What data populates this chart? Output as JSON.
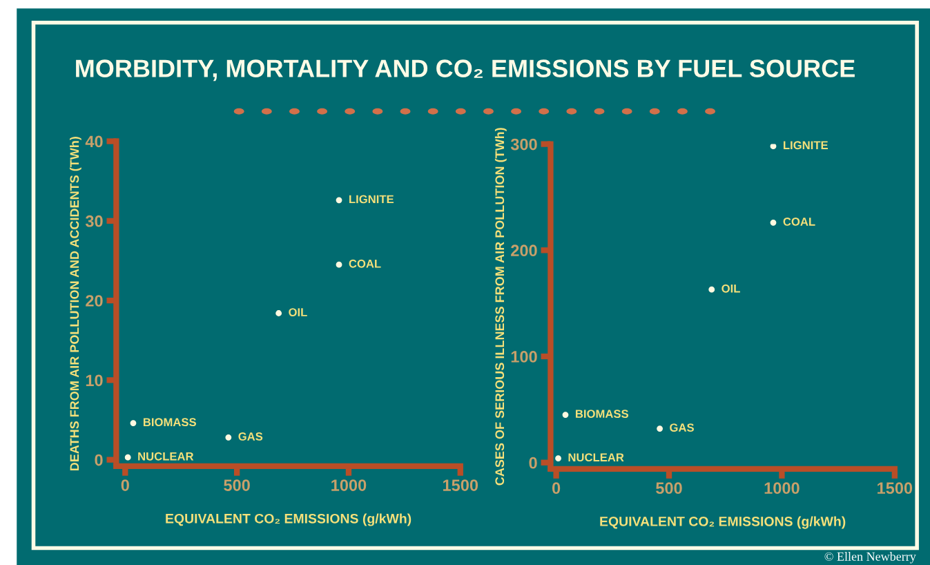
{
  "chart_data": [
    {
      "type": "scatter",
      "title": "MORBIDITY, MORTALITY AND CO₂ EMISSIONS BY FUEL SOURCE",
      "xlabel": "EQUIVALENT CO₂ EMISSIONS (g/kWh)",
      "ylabel": "DEATHS FROM AIR POLLUTION AND ACCIDENTS (TWh)",
      "x": [
        12,
        36,
        462,
        687,
        957,
        957
      ],
      "values": [
        0.3,
        4.6,
        2.8,
        18.4,
        24.5,
        32.6
      ],
      "color": "#fff8e0",
      "marker": "circle",
      "xlim": [
        -40,
        1500
      ],
      "xticks": [
        0,
        500,
        1000,
        1500
      ],
      "ylim": [
        -0.8,
        40
      ],
      "yticks": [
        0,
        10,
        20,
        30,
        40
      ],
      "grid": false,
      "annotations": [
        {
          "text": "NUCLEAR",
          "x": 12,
          "y": 0.3
        },
        {
          "text": "BIOMASS",
          "x": 36,
          "y": 4.6
        },
        {
          "text": "GAS",
          "x": 462,
          "y": 2.8
        },
        {
          "text": "OIL",
          "x": 687,
          "y": 18.4
        },
        {
          "text": "COAL",
          "x": 957,
          "y": 24.5
        },
        {
          "text": "LIGNITE",
          "x": 957,
          "y": 32.6
        }
      ]
    },
    {
      "type": "scatter",
      "xlabel": "EQUIVALENT CO₂ EMISSIONS (g/kWh)",
      "ylabel": "CASES OF SERIOUS ILLNESS FROM AIR POLLUTION (TWh)",
      "x": [
        9,
        41,
        459,
        689,
        962,
        962
      ],
      "values": [
        4,
        45,
        32,
        163,
        226,
        298
      ],
      "color": "#fff8e0",
      "marker": "circle",
      "xlim": [
        -25,
        1500
      ],
      "xticks": [
        0,
        500,
        1000,
        1500
      ],
      "ylim": [
        -6,
        300
      ],
      "yticks": [
        0,
        100,
        200,
        300
      ],
      "grid": false,
      "annotations": [
        {
          "text": "NUCLEAR",
          "x": 9,
          "y": 4
        },
        {
          "text": "BIOMASS",
          "x": 41,
          "y": 45
        },
        {
          "text": "GAS",
          "x": 459,
          "y": 32
        },
        {
          "text": "OIL",
          "x": 689,
          "y": 163
        },
        {
          "text": "COAL",
          "x": 962,
          "y": 226
        },
        {
          "text": "LIGNITE",
          "x": 962,
          "y": 298
        },
        "© Ellen Newberry"
      ]
    }
  ]
}
